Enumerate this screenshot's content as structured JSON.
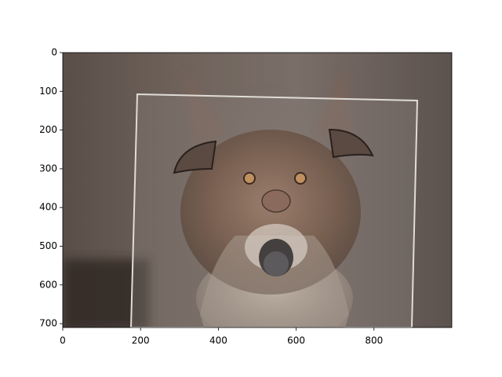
{
  "chart_data": {
    "type": "image",
    "xlim": [
      0,
      1000
    ],
    "ylim": [
      710,
      0
    ],
    "xticks": [
      0,
      200,
      400,
      600,
      800
    ],
    "yticks": [
      0,
      100,
      200,
      300,
      400,
      500,
      600,
      700
    ]
  }
}
